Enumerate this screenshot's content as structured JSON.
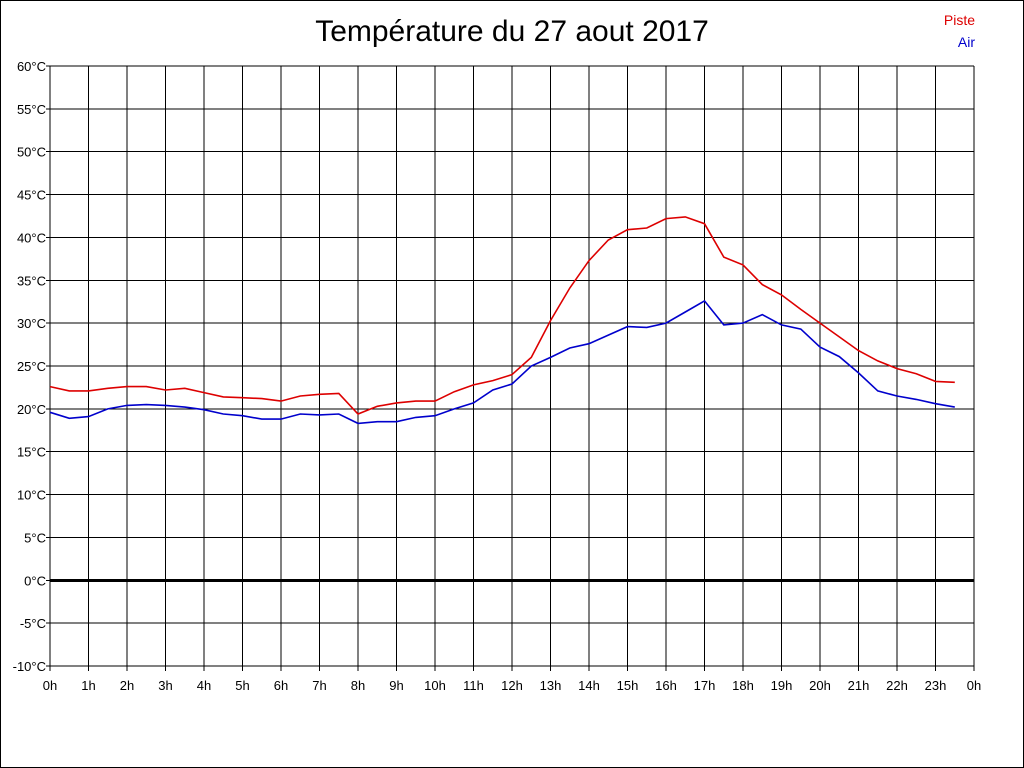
{
  "chart_data": {
    "type": "line",
    "title": "Température du 27 aout 2017",
    "xlabel": "",
    "ylabel": "",
    "x_tick_labels": [
      "0h",
      "1h",
      "2h",
      "3h",
      "4h",
      "5h",
      "6h",
      "7h",
      "8h",
      "9h",
      "10h",
      "11h",
      "12h",
      "13h",
      "14h",
      "15h",
      "16h",
      "17h",
      "18h",
      "19h",
      "20h",
      "21h",
      "22h",
      "23h",
      "0h"
    ],
    "y_tick_labels": [
      "60°C",
      "55°C",
      "50°C",
      "45°C",
      "40°C",
      "35°C",
      "30°C",
      "25°C",
      "20°C",
      "15°C",
      "10°C",
      "5°C",
      "0°C",
      "-5°C",
      "-10°C"
    ],
    "xlim": [
      0,
      24
    ],
    "ylim": [
      -10,
      60
    ],
    "grid": true,
    "zero_line": true,
    "legend_position": "top-right",
    "x": [
      0,
      0.5,
      1,
      1.5,
      2,
      2.5,
      3,
      3.5,
      4,
      4.5,
      5,
      5.5,
      6,
      6.5,
      7,
      7.5,
      8,
      8.5,
      9,
      9.5,
      10,
      10.5,
      11,
      11.5,
      12,
      12.5,
      13,
      13.5,
      14,
      14.5,
      15,
      15.5,
      16,
      16.5,
      17,
      17.5,
      18,
      18.5,
      19,
      19.5,
      20,
      20.5,
      21,
      21.5,
      22,
      22.5,
      23,
      23.5
    ],
    "series": [
      {
        "name": "Piste",
        "color": "#dd0000",
        "values": [
          22.6,
          22.1,
          22.1,
          22.4,
          22.6,
          22.6,
          22.2,
          22.4,
          21.9,
          21.4,
          21.3,
          21.2,
          20.9,
          21.5,
          21.7,
          21.8,
          19.4,
          20.3,
          20.7,
          20.9,
          20.9,
          22.0,
          22.8,
          23.3,
          24.0,
          26.0,
          30.3,
          34.1,
          37.3,
          39.7,
          40.9,
          41.1,
          42.2,
          42.4,
          41.6,
          37.7,
          36.8,
          34.5,
          33.3,
          31.6,
          30.0,
          28.4,
          26.8,
          25.6,
          24.7,
          24.1,
          23.2,
          23.1
        ]
      },
      {
        "name": "Air",
        "color": "#0000cc",
        "values": [
          19.6,
          18.9,
          19.1,
          20.0,
          20.4,
          20.5,
          20.4,
          20.2,
          19.9,
          19.4,
          19.2,
          18.8,
          18.8,
          19.4,
          19.3,
          19.4,
          18.3,
          18.5,
          18.5,
          19.0,
          19.2,
          20.0,
          20.7,
          22.2,
          22.9,
          25.0,
          26.0,
          27.1,
          27.6,
          28.6,
          29.6,
          29.5,
          30.0,
          31.3,
          32.6,
          29.8,
          30.0,
          31.0,
          29.8,
          29.3,
          27.2,
          26.1,
          24.2,
          22.1,
          21.5,
          21.1,
          20.6,
          20.2
        ]
      }
    ]
  },
  "colors": {
    "background": "#ffffff",
    "grid": "#000000",
    "zero_line": "#000000"
  }
}
